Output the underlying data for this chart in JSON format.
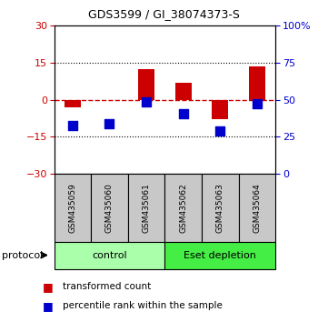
{
  "title": "GDS3599 / GI_38074373-S",
  "samples": [
    "GSM435059",
    "GSM435060",
    "GSM435061",
    "GSM435062",
    "GSM435063",
    "GSM435064"
  ],
  "group_labels": [
    "control",
    "Eset depletion"
  ],
  "group_sizes": [
    3,
    3
  ],
  "group_colors_light": "#AAFFAA",
  "group_colors_dark": "#44DD44",
  "transformed_count": [
    -3.0,
    0.0,
    12.5,
    7.0,
    -8.0,
    13.5
  ],
  "percentile_rank_left": [
    -10.5,
    -9.5,
    -1.0,
    -5.5,
    -12.5,
    -1.5
  ],
  "red_bar_color": "#CC0000",
  "blue_dot_color": "#0000CC",
  "ylim_left": [
    -30,
    30
  ],
  "yticks_left": [
    -30,
    -15,
    0,
    15,
    30
  ],
  "ylim_right": [
    0,
    100
  ],
  "yticks_right": [
    0,
    25,
    50,
    75,
    100
  ],
  "ytick_right_labels": [
    "0",
    "25",
    "50",
    "75",
    "100%"
  ],
  "hline_y": 0,
  "dotted_lines": [
    -15,
    15
  ],
  "bar_width": 0.45,
  "dot_size": 50,
  "legend_items": [
    "transformed count",
    "percentile rank within the sample"
  ],
  "legend_colors": [
    "#CC0000",
    "#0000CC"
  ],
  "protocol_label": "protocol",
  "background_color": "#FFFFFF",
  "plot_bg": "#FFFFFF",
  "tick_color_left": "#CC0000",
  "tick_color_right": "#0000CC",
  "sample_box_color": "#C8C8C8",
  "title_fontsize": 9,
  "tick_fontsize": 8,
  "sample_fontsize": 6.5,
  "protocol_fontsize": 8,
  "legend_fontsize": 7.5
}
